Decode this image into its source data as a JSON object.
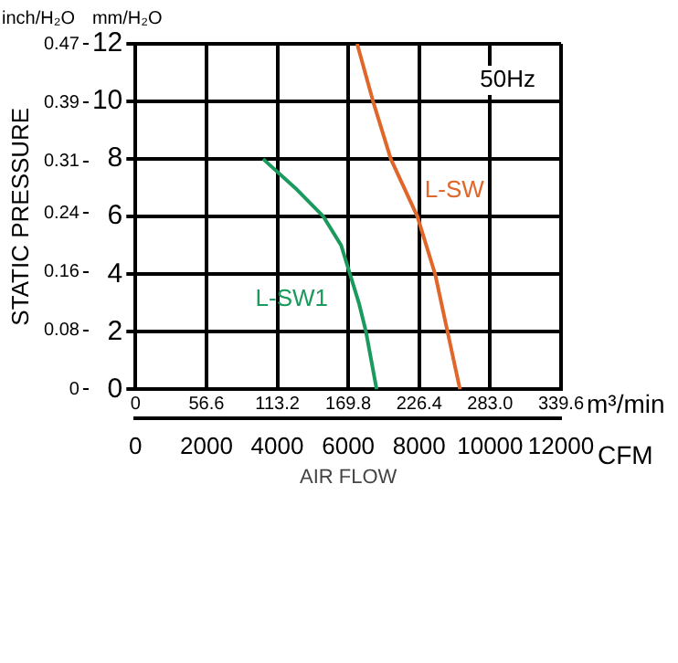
{
  "chart_data": {
    "type": "line",
    "xlabel": "AIR FLOW",
    "ylabel": "STATIC PRESSURE",
    "x2label": "m³/min",
    "y2label": "mm/H₂O",
    "annotations": [
      "inch/H₂O",
      "CFM",
      "50Hz"
    ],
    "xlim": [
      0,
      12000
    ],
    "xticks": [
      0,
      2000,
      4000,
      6000,
      8000,
      10000,
      12000
    ],
    "x2lim": [
      0,
      339.6
    ],
    "x2ticks": [
      0,
      56.6,
      113.2,
      169.8,
      226.4,
      {
        "value": 283,
        "label": "283.0"
      },
      339.6
    ],
    "y2lim": [
      0,
      12
    ],
    "y2ticks": [
      0,
      2,
      4,
      6,
      8,
      10,
      12
    ],
    "ylim": [
      0,
      0.47
    ],
    "yticks": [
      0,
      0.08,
      0.16,
      0.24,
      0.31,
      0.39,
      0.47
    ],
    "grid": true,
    "legend": false,
    "marker": "none",
    "line_style": "solid",
    "series": [
      {
        "name": "L-SW1",
        "color": "#1a9a5c",
        "axis": "y2",
        "x": [
          3600,
          4500,
          5300,
          5800,
          6050,
          6300,
          6500,
          6650,
          6800
        ],
        "values": [
          8,
          7,
          6,
          5,
          4,
          3,
          2,
          1,
          0
        ]
      },
      {
        "name": "L-SW",
        "color": "#e0662a",
        "axis": "y2",
        "x": [
          6250,
          6700,
          7200,
          7950,
          8450,
          8800,
          9150
        ],
        "values": [
          12,
          10,
          8,
          6,
          4,
          2,
          0
        ]
      }
    ]
  }
}
